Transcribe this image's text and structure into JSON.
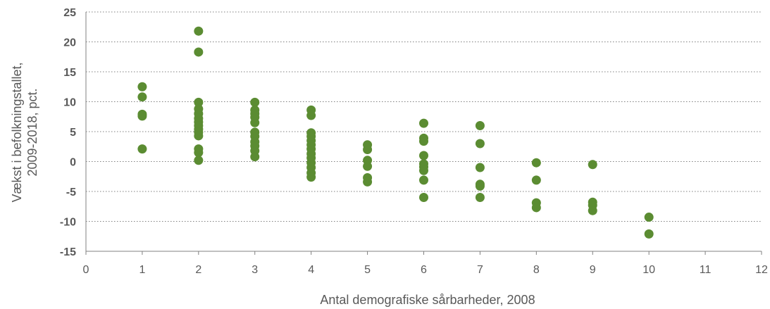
{
  "chart_data": {
    "type": "scatter",
    "xlabel": "Antal demografiske sårbarheder, 2008",
    "ylabel_lines": [
      "Vækst i befolkningstallet,",
      "2009-2018, pct."
    ],
    "xlim": [
      0,
      12
    ],
    "ylim": [
      -15,
      25
    ],
    "x_ticks": [
      "0",
      "1",
      "2",
      "3",
      "4",
      "5",
      "6",
      "7",
      "8",
      "9",
      "10",
      "11",
      "12"
    ],
    "y_ticks": [
      "25",
      "20",
      "15",
      "10",
      "5",
      "0",
      "-5",
      "-10",
      "-15"
    ],
    "grid": "horizontal dotted",
    "marker_color": "#5b8c32",
    "points": [
      {
        "x": 1,
        "y": 12.5
      },
      {
        "x": 1,
        "y": 10.8
      },
      {
        "x": 1,
        "y": 7.9
      },
      {
        "x": 1,
        "y": 7.6
      },
      {
        "x": 1,
        "y": 2.1
      },
      {
        "x": 2,
        "y": 21.8
      },
      {
        "x": 2,
        "y": 18.3
      },
      {
        "x": 2,
        "y": 9.9
      },
      {
        "x": 2,
        "y": 8.8
      },
      {
        "x": 2,
        "y": 8.0
      },
      {
        "x": 2,
        "y": 7.2
      },
      {
        "x": 2,
        "y": 6.6
      },
      {
        "x": 2,
        "y": 6.0
      },
      {
        "x": 2,
        "y": 5.4
      },
      {
        "x": 2,
        "y": 4.9
      },
      {
        "x": 2,
        "y": 4.3
      },
      {
        "x": 2,
        "y": 2.1
      },
      {
        "x": 2,
        "y": 1.5
      },
      {
        "x": 2,
        "y": 0.2
      },
      {
        "x": 3,
        "y": 9.9
      },
      {
        "x": 3,
        "y": 8.6
      },
      {
        "x": 3,
        "y": 8.0
      },
      {
        "x": 3,
        "y": 7.4
      },
      {
        "x": 3,
        "y": 6.5
      },
      {
        "x": 3,
        "y": 4.9
      },
      {
        "x": 3,
        "y": 4.2
      },
      {
        "x": 3,
        "y": 3.3
      },
      {
        "x": 3,
        "y": 2.6
      },
      {
        "x": 3,
        "y": 1.8
      },
      {
        "x": 3,
        "y": 0.8
      },
      {
        "x": 4,
        "y": 8.6
      },
      {
        "x": 4,
        "y": 7.7
      },
      {
        "x": 4,
        "y": 4.8
      },
      {
        "x": 4,
        "y": 4.2
      },
      {
        "x": 4,
        "y": 3.5
      },
      {
        "x": 4,
        "y": 2.8
      },
      {
        "x": 4,
        "y": 2.1
      },
      {
        "x": 4,
        "y": 1.3
      },
      {
        "x": 4,
        "y": 0.6
      },
      {
        "x": 4,
        "y": -0.2
      },
      {
        "x": 4,
        "y": -1.0
      },
      {
        "x": 4,
        "y": -1.9
      },
      {
        "x": 4,
        "y": -2.6
      },
      {
        "x": 5,
        "y": 2.8
      },
      {
        "x": 5,
        "y": 2.0
      },
      {
        "x": 5,
        "y": 0.2
      },
      {
        "x": 5,
        "y": -0.8
      },
      {
        "x": 5,
        "y": -2.7
      },
      {
        "x": 5,
        "y": -3.4
      },
      {
        "x": 6,
        "y": 6.4
      },
      {
        "x": 6,
        "y": 3.9
      },
      {
        "x": 6,
        "y": 3.4
      },
      {
        "x": 6,
        "y": 1.0
      },
      {
        "x": 6,
        "y": -0.4
      },
      {
        "x": 6,
        "y": -0.9
      },
      {
        "x": 6,
        "y": -1.5
      },
      {
        "x": 6,
        "y": -3.1
      },
      {
        "x": 6,
        "y": -6.0
      },
      {
        "x": 7,
        "y": 6.0
      },
      {
        "x": 7,
        "y": 3.0
      },
      {
        "x": 7,
        "y": -1.0
      },
      {
        "x": 7,
        "y": -3.8
      },
      {
        "x": 7,
        "y": -4.1
      },
      {
        "x": 7,
        "y": -6.0
      },
      {
        "x": 8,
        "y": -0.2
      },
      {
        "x": 8,
        "y": -3.1
      },
      {
        "x": 8,
        "y": -6.9
      },
      {
        "x": 8,
        "y": -7.7
      },
      {
        "x": 9,
        "y": -0.5
      },
      {
        "x": 9,
        "y": -6.8
      },
      {
        "x": 9,
        "y": -7.3
      },
      {
        "x": 9,
        "y": -8.2
      },
      {
        "x": 10,
        "y": -9.3
      },
      {
        "x": 10,
        "y": -12.1
      }
    ]
  }
}
